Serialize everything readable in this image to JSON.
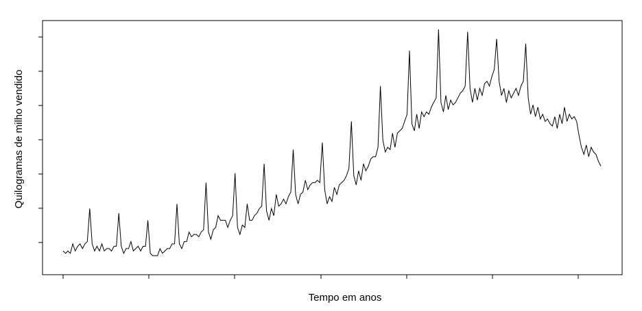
{
  "chart_data": {
    "type": "line",
    "title": "",
    "xlabel": "Tempo em anos",
    "ylabel": "Quilogramas de milho vendido",
    "grid": false,
    "legend": "none",
    "xlim": [
      0,
      1
    ],
    "ylim": [
      0,
      1
    ],
    "x_ticks_count": 7,
    "y_ticks_count": 7,
    "line_color": "#000000",
    "series": [
      {
        "values": [
          0.06,
          0.05,
          0.06,
          0.05,
          0.09,
          0.06,
          0.08,
          0.09,
          0.07,
          0.09,
          0.1,
          0.24,
          0.09,
          0.06,
          0.08,
          0.06,
          0.09,
          0.06,
          0.07,
          0.07,
          0.06,
          0.08,
          0.08,
          0.22,
          0.08,
          0.05,
          0.07,
          0.07,
          0.1,
          0.06,
          0.07,
          0.08,
          0.06,
          0.08,
          0.08,
          0.19,
          0.05,
          0.04,
          0.04,
          0.04,
          0.07,
          0.05,
          0.06,
          0.07,
          0.07,
          0.09,
          0.09,
          0.26,
          0.09,
          0.07,
          0.1,
          0.1,
          0.14,
          0.12,
          0.13,
          0.13,
          0.12,
          0.14,
          0.15,
          0.35,
          0.14,
          0.11,
          0.15,
          0.16,
          0.21,
          0.19,
          0.19,
          0.19,
          0.16,
          0.19,
          0.21,
          0.39,
          0.16,
          0.13,
          0.17,
          0.16,
          0.26,
          0.19,
          0.19,
          0.21,
          0.22,
          0.24,
          0.25,
          0.43,
          0.23,
          0.19,
          0.24,
          0.21,
          0.3,
          0.25,
          0.26,
          0.28,
          0.26,
          0.29,
          0.31,
          0.49,
          0.3,
          0.26,
          0.3,
          0.31,
          0.36,
          0.32,
          0.34,
          0.35,
          0.35,
          0.36,
          0.35,
          0.52,
          0.32,
          0.26,
          0.29,
          0.27,
          0.33,
          0.3,
          0.34,
          0.35,
          0.36,
          0.38,
          0.41,
          0.61,
          0.38,
          0.34,
          0.4,
          0.36,
          0.43,
          0.4,
          0.42,
          0.45,
          0.46,
          0.46,
          0.5,
          0.76,
          0.53,
          0.48,
          0.5,
          0.49,
          0.56,
          0.5,
          0.56,
          0.57,
          0.58,
          0.61,
          0.64,
          0.91,
          0.6,
          0.57,
          0.64,
          0.58,
          0.65,
          0.63,
          0.65,
          0.64,
          0.67,
          0.69,
          0.71,
          1.0,
          0.69,
          0.65,
          0.72,
          0.66,
          0.7,
          0.68,
          0.69,
          0.71,
          0.73,
          0.74,
          0.76,
          0.99,
          0.75,
          0.69,
          0.75,
          0.7,
          0.75,
          0.72,
          0.77,
          0.78,
          0.76,
          0.8,
          0.83,
          0.96,
          0.78,
          0.72,
          0.75,
          0.69,
          0.74,
          0.71,
          0.73,
          0.75,
          0.72,
          0.76,
          0.78,
          0.94,
          0.71,
          0.64,
          0.68,
          0.63,
          0.67,
          0.62,
          0.64,
          0.61,
          0.62,
          0.6,
          0.59,
          0.63,
          0.58,
          0.64,
          0.6,
          0.67,
          0.61,
          0.64,
          0.62,
          0.63,
          0.61,
          0.55,
          0.5,
          0.47,
          0.51,
          0.46,
          0.5,
          0.48,
          0.47,
          0.44,
          0.42
        ]
      }
    ]
  }
}
